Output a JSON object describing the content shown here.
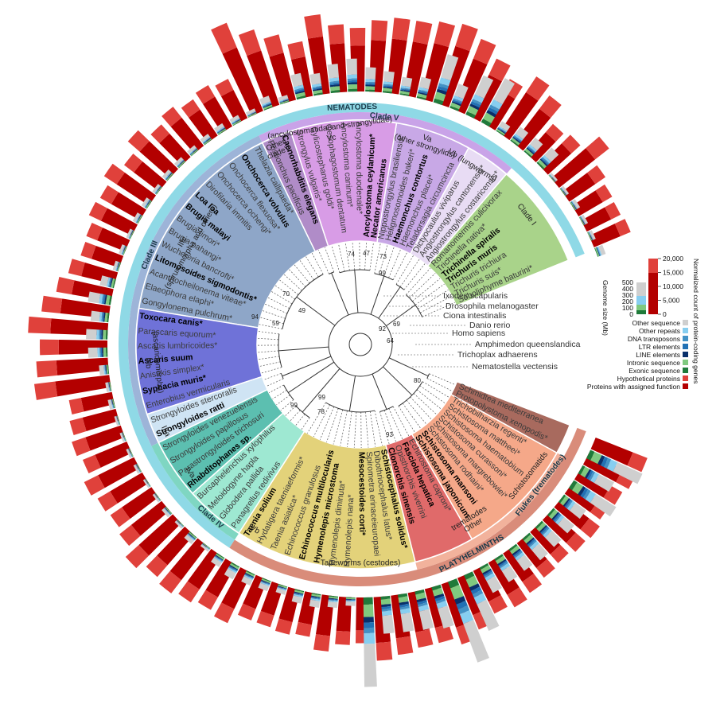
{
  "colors": {
    "protein_dark": "#b30000",
    "protein_light": "#e0413b",
    "exonic": "#1f7a3a",
    "intronic": "#7fc97f",
    "line": "#08306b",
    "ltr": "#2171b5",
    "dna": "#4292c6",
    "other_repeats": "#87cef0",
    "other_seq": "#cfcfcf",
    "outer_ring_nematode": "#8fd9e6",
    "outer_ring_platy": "#d98c7a"
  },
  "groups": [
    {
      "name": "Clade I",
      "color": "#a9d38a"
    },
    {
      "name": "Vb (lungworms)",
      "color": "#e8dcf4"
    },
    {
      "name": "Va (other strongylids)",
      "color": "#c8a8e6"
    },
    {
      "name": "Vc (ancylostomatidae and strongylidae)",
      "color": "#d89ce6"
    },
    {
      "name": "Other cladeV",
      "color": "#b08cc8"
    },
    {
      "name": "IIIc (spiruromorpha and others)",
      "color": "#8ea6c8"
    },
    {
      "name": "IIIb (ascaridomorpha)",
      "color": "#6f72d8"
    },
    {
      "name": "IIIa",
      "color": "#cfe4f4"
    },
    {
      "name": "IVa",
      "color": "#5cbfb0"
    },
    {
      "name": "IVb",
      "color": "#9ee8d2"
    },
    {
      "name": "Tapeworms (cestodes)",
      "color": "#e3d27a"
    },
    {
      "name": "Other trematodes",
      "color": "#e06a6a"
    },
    {
      "name": "Schistosomatids",
      "color": "#f5a889"
    },
    {
      "name": "Other platyhelminths",
      "color": "#a86a5e"
    }
  ],
  "ring_labels": {
    "nematodes": "NEMATODES",
    "clade_v": "Clade V",
    "clade_iii": "Clade III",
    "clade_iv": "Clade IV",
    "flukes": "Flukes (trematodes)",
    "platyhelminths": "PLATYHELMINTHS",
    "other_platy": "Other platyhel-minths"
  },
  "clade_labels": {
    "clade_i": "Clade I",
    "vb": "Vb (lungworms)",
    "va_1": "Va",
    "va_2": "(other strongylids)",
    "vc_1": "(ancylostomatidaeand strongylidae)",
    "vc_2": "Vc",
    "other_cladev_1": "Other",
    "other_cladev_2": "cladeV",
    "iiic_1": "IIIc",
    "iiic_2": "(spiruromorpha and others)",
    "iiib_1": "IIIb",
    "iiib_2": "(ascaridomorpha)",
    "iiia": "IIIa",
    "iva": "IVa",
    "ivb": "IVb",
    "tapeworms": "Tapeworms (cestodes)",
    "other_trem_1": "Other",
    "other_trem_2": "trematodes",
    "schisto": "Schistosomatids"
  },
  "species": [
    {
      "name": "Soboliphyme baturini*",
      "group": 0,
      "bold": false,
      "value": 10000,
      "genome": 120
    },
    {
      "name": "Trichuris suis*",
      "group": 0,
      "bold": false,
      "value": 9500,
      "genome": 70
    },
    {
      "name": "Trichuris trichiura",
      "group": 0,
      "bold": false,
      "value": 9800,
      "genome": 70
    },
    {
      "name": "Trichuris muris",
      "group": 0,
      "bold": true,
      "value": 11000,
      "genome": 85
    },
    {
      "name": "Trichinella spiralis",
      "group": 0,
      "bold": true,
      "value": 16000,
      "genome": 63
    },
    {
      "name": "Trichinella nativa*",
      "group": 0,
      "bold": false,
      "value": 11000,
      "genome": 55
    },
    {
      "name": "Romanomermis culicivorax",
      "group": 0,
      "bold": false,
      "value": 10000,
      "genome": 300
    },
    {
      "name": "Angiostrongylus costaricensis*",
      "group": 1,
      "bold": false,
      "value": 15000,
      "genome": 250
    },
    {
      "name": "Angiostrongylus cantonensis*",
      "group": 1,
      "bold": false,
      "value": 17000,
      "genome": 240
    },
    {
      "name": "Dictyocaulus viviparus",
      "group": 1,
      "bold": false,
      "value": 13000,
      "genome": 160
    },
    {
      "name": "Teladorsagia circumcincta",
      "group": 2,
      "bold": false,
      "value": 16000,
      "genome": 700
    },
    {
      "name": "Haemonchus placei*",
      "group": 2,
      "bold": false,
      "value": 19000,
      "genome": 600
    },
    {
      "name": "Haemonchus contortus",
      "group": 2,
      "bold": true,
      "value": 21000,
      "genome": 360
    },
    {
      "name": "Heligmosomoides bakeri*",
      "group": 2,
      "bold": false,
      "value": 20000,
      "genome": 700
    },
    {
      "name": "Nippostrongylus brasiliensis*",
      "group": 2,
      "bold": false,
      "value": 19000,
      "genome": 300
    },
    {
      "name": "Necator americanus",
      "group": 3,
      "bold": true,
      "value": 19000,
      "genome": 250
    },
    {
      "name": "Ancylostoma ceylanicum*",
      "group": 3,
      "bold": true,
      "value": 18000,
      "genome": 300
    },
    {
      "name": "Ancylostoma duodenale*",
      "group": 3,
      "bold": false,
      "value": 16000,
      "genome": 340
    },
    {
      "name": "Ancylostoma caninum*",
      "group": 3,
      "bold": false,
      "value": 17000,
      "genome": 460
    },
    {
      "name": "Oesophagostomum dentatum",
      "group": 3,
      "bold": false,
      "value": 20000,
      "genome": 400
    },
    {
      "name": "Cylicostephanus goldi*",
      "group": 3,
      "bold": false,
      "value": 14000,
      "genome": 300
    },
    {
      "name": "Strongylus vulgaris*",
      "group": 3,
      "bold": false,
      "value": 17000,
      "genome": 350
    },
    {
      "name": "Caenorhabditis elegans",
      "group": 4,
      "bold": true,
      "value": 20000,
      "genome": 100
    },
    {
      "name": "Pristionchus pacificus",
      "group": 4,
      "bold": false,
      "value": 24000,
      "genome": 170
    },
    {
      "name": "Thelazia callipaeda*",
      "group": 5,
      "bold": false,
      "value": 11000,
      "genome": 80
    },
    {
      "name": "Onchocerca volvulus",
      "group": 5,
      "bold": true,
      "value": 12000,
      "genome": 100
    },
    {
      "name": "Onchocerca flexuosa*",
      "group": 5,
      "bold": false,
      "value": 11000,
      "genome": 110
    },
    {
      "name": "Onchocerca ochengi*",
      "group": 5,
      "bold": false,
      "value": 12500,
      "genome": 100
    },
    {
      "name": "Dirofilaria immitis",
      "group": 5,
      "bold": false,
      "value": 11000,
      "genome": 90
    },
    {
      "name": "Loa loa",
      "group": 5,
      "bold": true,
      "value": 14000,
      "genome": 90
    },
    {
      "name": "Brugia malayi",
      "group": 5,
      "bold": true,
      "value": 11000,
      "genome": 95
    },
    {
      "name": "Brugia timori*",
      "group": 5,
      "bold": false,
      "value": 13500,
      "genome": 75
    },
    {
      "name": "Brugia pahangi*",
      "group": 5,
      "bold": false,
      "value": 11500,
      "genome": 90
    },
    {
      "name": "Wuchereria bancrofti*",
      "group": 5,
      "bold": false,
      "value": 12000,
      "genome": 85
    },
    {
      "name": "Litomosoides sigmodontis*",
      "group": 5,
      "bold": true,
      "value": 10500,
      "genome": 65
    },
    {
      "name": "Acanthocheilonema viteae*",
      "group": 5,
      "bold": false,
      "value": 10200,
      "genome": 75
    },
    {
      "name": "Elaeophora elaphi*",
      "group": 5,
      "bold": false,
      "value": 12000,
      "genome": 80
    },
    {
      "name": "Gongylonema pulchrum*",
      "group": 5,
      "bold": false,
      "value": 14000,
      "genome": 200
    },
    {
      "name": "Toxocara canis*",
      "group": 6,
      "bold": true,
      "value": 17000,
      "genome": 320
    },
    {
      "name": "Parascaris equorum*",
      "group": 6,
      "bold": false,
      "value": 20000,
      "genome": 250
    },
    {
      "name": "Ascaris lumbricoides*",
      "group": 6,
      "bold": false,
      "value": 17000,
      "genome": 300
    },
    {
      "name": "Ascaris suum",
      "group": 6,
      "bold": true,
      "value": 18000,
      "genome": 270
    },
    {
      "name": "Anisakis simplex*",
      "group": 6,
      "bold": false,
      "value": 19000,
      "genome": 130
    },
    {
      "name": "Syphacia muris*",
      "group": 6,
      "bold": true,
      "value": 11000,
      "genome": 70
    },
    {
      "name": "Enterobius vermicularis",
      "group": 6,
      "bold": false,
      "value": 12000,
      "genome": 80
    },
    {
      "name": "Strongyloides stercoralis",
      "group": 7,
      "bold": false,
      "value": 13000,
      "genome": 50
    },
    {
      "name": "Strongyloides ratti",
      "group": 7,
      "bold": true,
      "value": 12000,
      "genome": 50
    },
    {
      "name": "Strongyloides venezuelensis",
      "group": 8,
      "bold": false,
      "value": 14000,
      "genome": 55
    },
    {
      "name": "Strongyloides papillosus",
      "group": 8,
      "bold": false,
      "value": 13000,
      "genome": 60
    },
    {
      "name": "Parastrongyloides trichosuri",
      "group": 8,
      "bold": false,
      "value": 12500,
      "genome": 45
    },
    {
      "name": "Rhabditophanes sp.",
      "group": 8,
      "bold": true,
      "value": 13500,
      "genome": 50
    },
    {
      "name": "Bursaphelenchus xylophilus",
      "group": 9,
      "bold": false,
      "value": 16000,
      "genome": 80
    },
    {
      "name": "Meloidogyne hapla",
      "group": 9,
      "bold": false,
      "value": 14000,
      "genome": 55
    },
    {
      "name": "Globodera pallida",
      "group": 9,
      "bold": false,
      "value": 15000,
      "genome": 120
    },
    {
      "name": "Panagrellus redivivus",
      "group": 9,
      "bold": false,
      "value": 14000,
      "genome": 60
    },
    {
      "name": "Taenia solium",
      "group": 10,
      "bold": true,
      "value": 13000,
      "genome": 150
    },
    {
      "name": "Hydatigera taeniaeformis*",
      "group": 10,
      "bold": false,
      "value": 14000,
      "genome": 200
    },
    {
      "name": "Taenia asiatica*",
      "group": 10,
      "bold": false,
      "value": 11000,
      "genome": 170
    },
    {
      "name": "Echinococcus granulosus",
      "group": 10,
      "bold": false,
      "value": 11000,
      "genome": 150
    },
    {
      "name": "Echinococcus multilocularis",
      "group": 10,
      "bold": true,
      "value": 11500,
      "genome": 120
    },
    {
      "name": "Hymenolepis microstoma",
      "group": 10,
      "bold": true,
      "value": 11000,
      "genome": 180
    },
    {
      "name": "Hymenolepis diminuta*",
      "group": 10,
      "bold": false,
      "value": 14000,
      "genome": 190
    },
    {
      "name": "Hymenolepis nana*",
      "group": 10,
      "bold": false,
      "value": 12000,
      "genome": 160
    },
    {
      "name": "Mesocestoides corti*",
      "group": 10,
      "bold": true,
      "value": 11500,
      "genome": 120
    },
    {
      "name": "Spirometra erinaceieuropaei",
      "group": 10,
      "bold": false,
      "value": 16000,
      "genome": 1250
    },
    {
      "name": "Dibothriocephalus latus*",
      "group": 10,
      "bold": false,
      "value": 15000,
      "genome": 520
    },
    {
      "name": "Schistocephalus solidus*",
      "group": 10,
      "bold": true,
      "value": 14000,
      "genome": 530
    },
    {
      "name": "Clonorchis sinensis",
      "group": 11,
      "bold": true,
      "value": 14000,
      "genome": 550
    },
    {
      "name": "Opisthorchis viverrini",
      "group": 11,
      "bold": false,
      "value": 16000,
      "genome": 600
    },
    {
      "name": "Fasciola hepatica",
      "group": 11,
      "bold": true,
      "value": 14000,
      "genome": 1200
    },
    {
      "name": "Echinostoma caproni*",
      "group": 11,
      "bold": false,
      "value": 12000,
      "genome": 850
    },
    {
      "name": "Schistosoma japonicum",
      "group": 12,
      "bold": true,
      "value": 13000,
      "genome": 400
    },
    {
      "name": "Schistosoma mansoni",
      "group": 12,
      "bold": true,
      "value": 12000,
      "genome": 380
    },
    {
      "name": "Schistosoma rodhaini*",
      "group": 12,
      "bold": false,
      "value": 11000,
      "genome": 370
    },
    {
      "name": "Schistosoma margrebowiei*",
      "group": 12,
      "bold": false,
      "value": 10500,
      "genome": 390
    },
    {
      "name": "Schistosoma curassoni*",
      "group": 12,
      "bold": false,
      "value": 11500,
      "genome": 380
    },
    {
      "name": "Schistosoma haematobium",
      "group": 12,
      "bold": false,
      "value": 12000,
      "genome": 380
    },
    {
      "name": "Schistosoma mattheei*",
      "group": 12,
      "bold": false,
      "value": 11000,
      "genome": 380
    },
    {
      "name": "Trichobilharzia regenti*",
      "group": 12,
      "bold": false,
      "value": 12000,
      "genome": 700
    },
    {
      "name": "Protopolystoma xenopodis*",
      "group": 13,
      "bold": false,
      "value": 13000,
      "genome": 500
    },
    {
      "name": "Schmidtea mediterranea",
      "group": 13,
      "bold": false,
      "value": 14000,
      "genome": 800
    }
  ],
  "outgroups": [
    "Nematostella vectensis",
    "Trichoplax adhaerens",
    "Amphimedon queenslandica",
    "Homo sapiens",
    "Danio rerio",
    "Ciona intestinalis",
    "Drosophila melanogaster",
    "Ixodes scapularis"
  ],
  "bootstrap": [
    "74",
    "47",
    "99",
    "73",
    "70",
    "49",
    "59",
    "92",
    "69",
    "64",
    "99",
    "78",
    "99",
    "93",
    "80",
    "94"
  ],
  "legend": {
    "genome_title": "Genome size (Mb)",
    "genome_ticks": [
      "500",
      "400",
      "300",
      "200",
      "100",
      "0"
    ],
    "protein_title": "Normalized count of protein-coding genes",
    "protein_ticks": [
      "20,000",
      "15,000",
      "10,000",
      "5,000",
      "0"
    ],
    "items": [
      {
        "label": "Other sequence",
        "color": "#cfcfcf"
      },
      {
        "label": "Other repeats",
        "color": "#87cef0"
      },
      {
        "label": "DNA transposons",
        "color": "#4292c6"
      },
      {
        "label": "LTR elements",
        "color": "#2171b5"
      },
      {
        "label": "LINE elements",
        "color": "#08306b"
      },
      {
        "label": "Intronic sequence",
        "color": "#7fc97f"
      },
      {
        "label": "Exonic sequence",
        "color": "#1f7a3a"
      },
      {
        "label": "Hypothetical proteins",
        "color": "#e0413b"
      },
      {
        "label": "Proteins with assigned function",
        "color": "#b30000"
      }
    ]
  }
}
